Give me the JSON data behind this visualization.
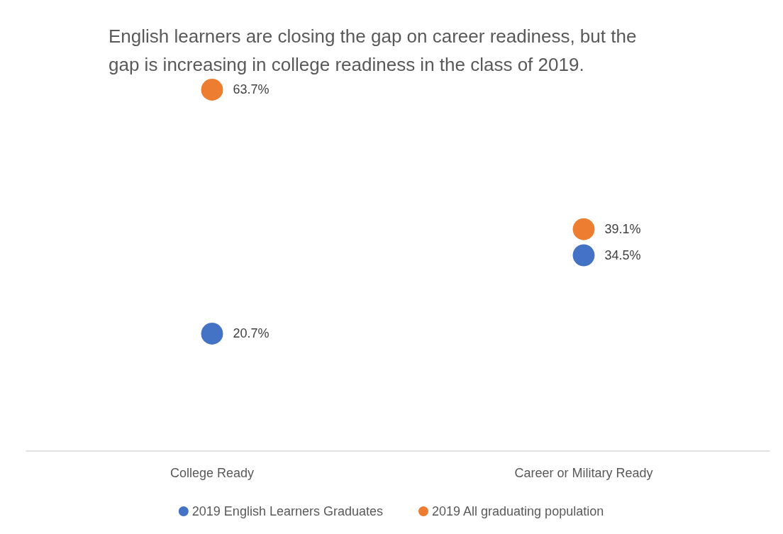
{
  "chart_data": {
    "type": "scatter",
    "title": "English learners are closing the gap on career readiness, but the gap is increasing in college readiness in the class of 2019.",
    "categories": [
      "College Ready",
      "Career or Military Ready"
    ],
    "series": [
      {
        "name": "2019 English Learners Graduates",
        "color": "#4472c4",
        "values": [
          20.7,
          34.5
        ],
        "value_labels": [
          "20.7%",
          "34.5%"
        ]
      },
      {
        "name": "2019 All graduating population",
        "color": "#ed7d31",
        "values": [
          63.7,
          39.1
        ],
        "value_labels": [
          "63.7%",
          "39.1%"
        ]
      }
    ],
    "tick_labels": "x",
    "grid": false,
    "legend": "bottom",
    "marker": "circle"
  }
}
